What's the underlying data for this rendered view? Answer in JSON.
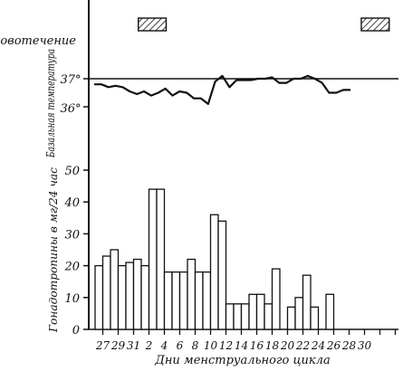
{
  "chart_data": [
    {
      "type": "bar",
      "title": "",
      "ylabel": "Гонадотропины в мг/24 час",
      "xlabel": "Дни менструального цикла",
      "ylim": [
        0,
        50
      ],
      "yticks": [
        0,
        10,
        20,
        30,
        40,
        50
      ],
      "x_tick_labels": [
        "27",
        "29",
        "31",
        "2",
        "4",
        "6",
        "8",
        "10",
        "12",
        "14",
        "16",
        "18",
        "20",
        "22",
        "24",
        "26",
        "28",
        "30"
      ],
      "values": [
        20,
        23,
        25,
        20,
        21,
        22,
        20,
        44,
        44,
        18,
        18,
        18,
        22,
        18,
        18,
        36,
        34,
        8,
        8,
        8,
        11,
        11,
        8,
        19,
        0,
        7,
        10,
        17,
        7,
        0,
        11
      ],
      "grid": false
    },
    {
      "type": "line",
      "ylabel": "Базальная температура",
      "y_tick_labels": [
        "36°",
        "37°"
      ],
      "reference_line": 37,
      "values": [
        36.8,
        36.8,
        36.7,
        36.75,
        36.7,
        36.55,
        36.45,
        36.55,
        36.4,
        36.5,
        36.65,
        36.4,
        36.55,
        36.5,
        36.3,
        36.3,
        36.1,
        36.9,
        37.1,
        36.7,
        36.95,
        36.95,
        36.95,
        37.0,
        37.0,
        37.05,
        36.85,
        36.85,
        37.0,
        37.0,
        37.1,
        37.0,
        36.85,
        36.5,
        36.5,
        36.6,
        36.6
      ],
      "grid": false
    },
    {
      "type": "timeline",
      "label": "Кровотечение",
      "periods": [
        {
          "start": 0.16,
          "end": 0.25
        },
        {
          "start": 0.88,
          "end": 0.97
        }
      ]
    }
  ]
}
